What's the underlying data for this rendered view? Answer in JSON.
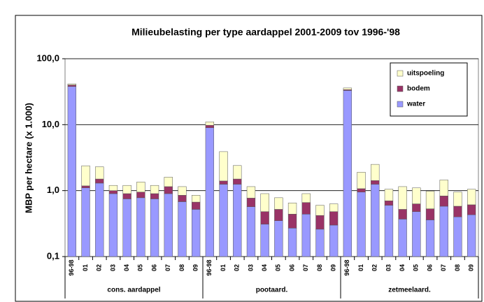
{
  "chart_data": {
    "type": "bar",
    "stacked": true,
    "title": "Milieubelasting per type aardappel 2001-2009 tov 1996-'98",
    "y_label": "MBP per hectare (x 1.000)",
    "log_scale": true,
    "grid": true,
    "legend": "upper right",
    "ylim": [
      0.1,
      100
    ],
    "yticks": [
      {
        "value": 0.1,
        "label": "0,1"
      },
      {
        "value": 1,
        "label": "1,0"
      },
      {
        "value": 10,
        "label": "10,0"
      },
      {
        "value": 100,
        "label": "100,0"
      }
    ],
    "categories": [
      "96-98",
      "01",
      "02",
      "03",
      "04",
      "05",
      "06",
      "07",
      "08",
      "09",
      "96-98",
      "01",
      "02",
      "03",
      "04",
      "05",
      "06",
      "07",
      "08",
      "09",
      "96-98",
      "01",
      "02",
      "03",
      "04",
      "05",
      "06",
      "07",
      "08",
      "09"
    ],
    "groups": [
      "cons. aardappel",
      "pootaard.",
      "zetmeelaard."
    ],
    "series": [
      {
        "name": "water",
        "color": "#9999ff",
        "values": [
          38,
          1.1,
          1.3,
          0.9,
          0.75,
          0.78,
          0.75,
          0.9,
          0.68,
          0.52,
          9,
          1.25,
          1.25,
          0.57,
          0.31,
          0.35,
          0.27,
          0.44,
          0.26,
          0.3,
          33,
          0.95,
          1.25,
          0.6,
          0.37,
          0.48,
          0.36,
          0.58,
          0.4,
          0.43
        ]
      },
      {
        "name": "bodem",
        "color": "#993366",
        "values": [
          2,
          0.08,
          0.2,
          0.1,
          0.15,
          0.17,
          0.15,
          0.25,
          0.17,
          0.15,
          0.8,
          0.15,
          0.25,
          0.2,
          0.17,
          0.17,
          0.17,
          0.22,
          0.16,
          0.18,
          1,
          0.12,
          0.17,
          0.1,
          0.15,
          0.15,
          0.17,
          0.25,
          0.18,
          0.18
        ]
      },
      {
        "name": "uitspoeling",
        "color": "#ffffcc",
        "values": [
          1.5,
          1.2,
          0.8,
          0.2,
          0.3,
          0.4,
          0.3,
          0.45,
          0.3,
          0.18,
          1.2,
          2.5,
          0.9,
          0.38,
          0.42,
          0.26,
          0.21,
          0.24,
          0.18,
          0.15,
          2,
          0.83,
          1.08,
          0.35,
          0.63,
          0.47,
          0.45,
          0.62,
          0.37,
          0.44
        ]
      }
    ]
  }
}
